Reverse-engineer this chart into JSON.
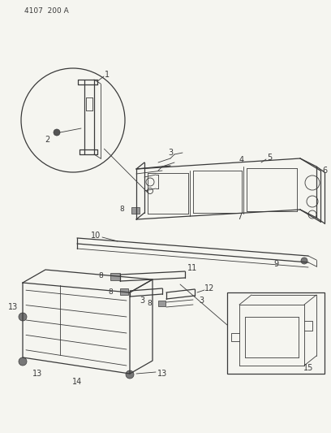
{
  "title_text": "4107  200 A",
  "bg_color": "#f5f5f0",
  "line_color": "#3a3a3a",
  "fig_width": 4.08,
  "fig_height": 5.33,
  "dpi": 100
}
